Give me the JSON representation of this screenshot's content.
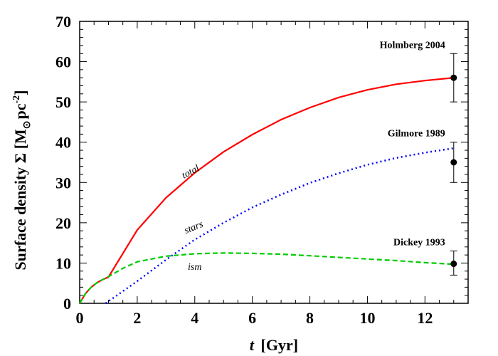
{
  "chart_data": {
    "type": "line",
    "xlabel_var": "t",
    "xlabel_unit": "[Gyr]",
    "ylabel_text": "Surface density Σ [M",
    "ylabel_sub": "⊙",
    "ylabel_mid": "pc",
    "ylabel_sup": "-2",
    "ylabel_end": "]",
    "xlim": [
      0,
      13.5
    ],
    "ylim": [
      0,
      70
    ],
    "xticks": [
      0,
      2,
      4,
      6,
      8,
      10,
      12
    ],
    "xtick_labels": [
      "0",
      "2",
      "4",
      "6",
      "8",
      "10",
      "12"
    ],
    "yticks": [
      0,
      10,
      20,
      30,
      40,
      50,
      60,
      70
    ],
    "ytick_labels": [
      "0",
      "10",
      "20",
      "30",
      "40",
      "50",
      "60",
      "70"
    ],
    "series": [
      {
        "name": "total",
        "color": "#ff0000",
        "style": "solid",
        "x": [
          0,
          0.2,
          0.4,
          0.6,
          0.8,
          1.0,
          2,
          3,
          4,
          5,
          6,
          7,
          8,
          9,
          10,
          11,
          12,
          13
        ],
        "y": [
          0,
          2.4,
          4.0,
          5.1,
          5.9,
          6.5,
          18.2,
          26.2,
          32.4,
          37.6,
          41.9,
          45.6,
          48.6,
          51.1,
          53.0,
          54.4,
          55.3,
          56.0
        ]
      },
      {
        "name": "stars",
        "color": "#0000ff",
        "style": "dotted",
        "x": [
          0.9,
          2,
          3,
          4,
          5,
          6,
          7,
          8,
          9,
          10,
          11,
          12,
          13
        ],
        "y": [
          0,
          5.5,
          10.8,
          15.8,
          20.0,
          23.8,
          27.0,
          29.9,
          32.3,
          34.4,
          36.1,
          37.4,
          38.5
        ]
      },
      {
        "name": "ism",
        "color": "#00cc00",
        "style": "dashed",
        "x": [
          0,
          0.2,
          0.4,
          0.6,
          0.8,
          1.0,
          1.5,
          2,
          3,
          4,
          5,
          6,
          7,
          8,
          9,
          10,
          11,
          12,
          13
        ],
        "y": [
          0,
          2.4,
          4.0,
          5.1,
          5.9,
          6.6,
          8.7,
          10.3,
          11.7,
          12.3,
          12.5,
          12.4,
          12.2,
          11.8,
          11.4,
          11.0,
          10.6,
          10.1,
          9.7
        ]
      }
    ],
    "curve_labels": [
      {
        "text": "total",
        "x": 3.9,
        "y": 32,
        "angle": -28
      },
      {
        "text": "stars",
        "x": 4.0,
        "y": 18.2,
        "angle": -22
      },
      {
        "text": "ism",
        "x": 4.0,
        "y": 8.3,
        "angle": 0
      }
    ],
    "observations": [
      {
        "label": "Holmberg 2004",
        "x": 13,
        "y": 56,
        "err_low": 50,
        "err_high": 62
      },
      {
        "label": "Gilmore 1989",
        "x": 13,
        "y": 35,
        "err_low": 30,
        "err_high": 40
      },
      {
        "label": "Dickey 1993",
        "x": 13,
        "y": 9.8,
        "err_low": 7,
        "err_high": 13
      }
    ],
    "grid": false
  }
}
